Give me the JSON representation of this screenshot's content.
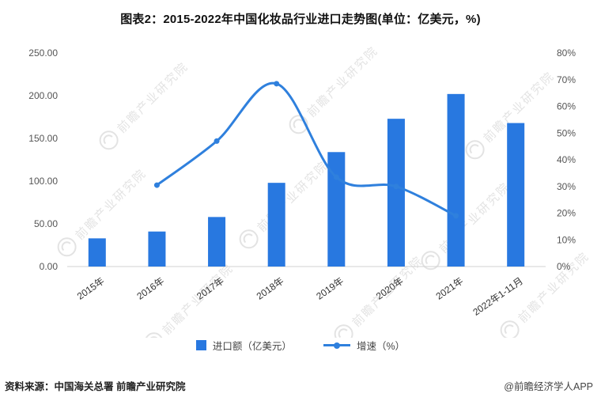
{
  "title": "图表2：2015-2022年中国化妆品行业进口走势图(单位：亿美元，%)",
  "watermark": {
    "text": "前瞻产业研究院"
  },
  "colors": {
    "bar": "#2878e0",
    "line": "#2f80dd",
    "axis_text": "#555555",
    "category_text": "#333333",
    "watermark": "#cccccc",
    "axis_line": "#d0d0d0"
  },
  "chart_data": {
    "type": "bar",
    "combo": "bar+line dual-axis",
    "title": "图表2：2015-2022年中国化妆品行业进口走势图(单位：亿美元，%)",
    "categories": [
      "2015年",
      "2016年",
      "2017年",
      "2018年",
      "2019年",
      "2020年",
      "2021年",
      "2022年1-11月"
    ],
    "series": [
      {
        "name": "进口额（亿美元）",
        "type": "bar",
        "axis": "left",
        "values": [
          33,
          41,
          58,
          98,
          134,
          173,
          202,
          168
        ]
      },
      {
        "name": "增速（%）",
        "type": "line",
        "axis": "right",
        "values": [
          null,
          30.5,
          47,
          68.5,
          33.5,
          30,
          19,
          null
        ]
      }
    ],
    "left_axis": {
      "min": 0,
      "max": 250,
      "step": 50,
      "tick_labels": [
        "0.00",
        "50.00",
        "100.00",
        "150.00",
        "200.00",
        "250.00"
      ]
    },
    "right_axis": {
      "min": 0,
      "max": 80,
      "step": 10,
      "tick_labels": [
        "0%",
        "10%",
        "20%",
        "30%",
        "40%",
        "50%",
        "60%",
        "70%",
        "80%"
      ]
    },
    "grid": false,
    "legend_position": "bottom"
  },
  "footer": {
    "source": "资料来源：中国海关总署 前瞻产业研究院",
    "credit": "@前瞻经济学人APP"
  }
}
